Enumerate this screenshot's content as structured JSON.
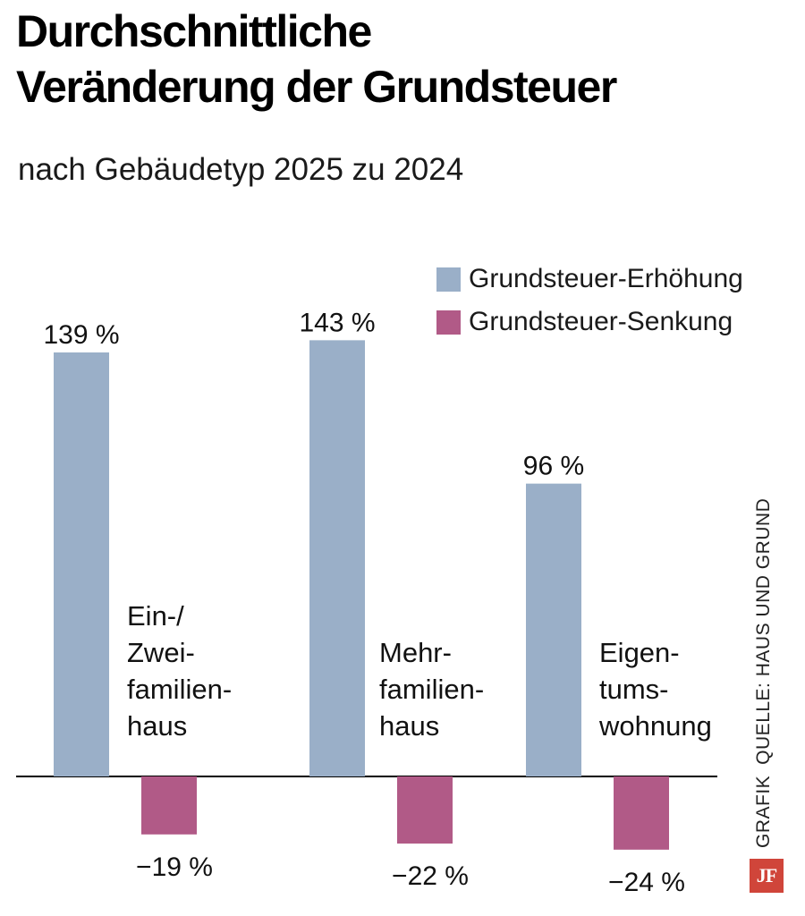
{
  "colors": {
    "increase": "#9aafc8",
    "decrease": "#b15a87",
    "axis": "#000000",
    "logo": "#d0453a"
  },
  "chart_data": {
    "type": "bar",
    "title": "Durchschnittliche Veränderung der Grundsteuer",
    "title_lines": [
      "Durchschnittliche",
      "Veränderung der Grundsteuer"
    ],
    "subtitle": "nach Gebäudetyp 2025 zu 2024",
    "categories": [
      {
        "id": "ein-zwei",
        "lines": [
          "Ein-/",
          "Zwei-",
          "familien-",
          "haus"
        ]
      },
      {
        "id": "mehr",
        "lines": [
          "Mehr-",
          "familien-",
          "haus"
        ]
      },
      {
        "id": "eigentum",
        "lines": [
          "Eigen-",
          "tums-",
          "wohnung"
        ]
      }
    ],
    "series": [
      {
        "name": "Grundsteuer-Erhöhung",
        "color_key": "increase",
        "values": [
          139,
          143,
          96
        ],
        "labels": [
          "139 %",
          "143 %",
          "96 %"
        ]
      },
      {
        "name": "Grundsteuer-Senkung",
        "color_key": "decrease",
        "values": [
          -19,
          -22,
          -24
        ],
        "labels": [
          "−19 %",
          "−22 %",
          "−24 %"
        ]
      }
    ],
    "xlabel": "",
    "ylabel": "",
    "ylim": [
      -24,
      143
    ],
    "grid": false,
    "legend_position": "top-right"
  },
  "footer": {
    "grafik": "GRAFIK",
    "source": "QUELLE: HAUS UND GRUND",
    "logo_text": "JF"
  }
}
